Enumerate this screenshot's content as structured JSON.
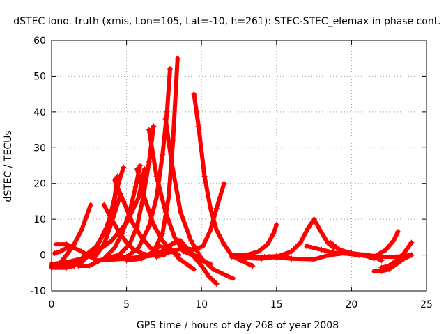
{
  "chart_data": {
    "type": "scatter",
    "title": "dSTEC Iono. truth (xmis, Lon=105, Lat=-10, h=261): STEC-STEC_elemax in phase cont.",
    "xlabel": "GPS time / hours of day 268 of year 2008",
    "ylabel": "dSTEC  / TECUs",
    "xlim": [
      0,
      25
    ],
    "ylim": [
      -10,
      60
    ],
    "xticks": [
      0,
      5,
      10,
      15,
      20,
      25
    ],
    "yticks": [
      -10,
      0,
      10,
      20,
      30,
      40,
      50,
      60
    ],
    "grid": true,
    "legend": "none",
    "marker": "plus",
    "color": "#ff0000",
    "series": [
      {
        "x": [
          0.0,
          0.5,
          1.0,
          1.5,
          2.0,
          2.3,
          2.6
        ],
        "y": [
          -3.0,
          -2.5,
          0.0,
          3.0,
          7.0,
          10.5,
          14.0
        ]
      },
      {
        "x": [
          0.0,
          1.0,
          2.0,
          3.0,
          3.6,
          4.0,
          4.3,
          4.6,
          4.8
        ],
        "y": [
          -2.5,
          -2.0,
          -1.0,
          2.5,
          7.0,
          12.0,
          17.5,
          22.0,
          24.5
        ]
      },
      {
        "x": [
          0.3,
          1.0,
          2.0,
          3.0,
          3.8,
          4.2,
          4.4
        ],
        "y": [
          -3.5,
          -3.0,
          -2.0,
          2.0,
          9.0,
          16.0,
          22.0
        ]
      },
      {
        "x": [
          1.8,
          2.5,
          3.5,
          4.2,
          4.7,
          5.2,
          5.6,
          5.9
        ],
        "y": [
          -3.0,
          -3.0,
          -1.0,
          2.0,
          6.0,
          12.0,
          19.0,
          25.0
        ]
      },
      {
        "x": [
          3.5,
          4.5,
          5.2,
          5.7,
          6.1,
          6.5,
          6.8
        ],
        "y": [
          -1.0,
          0.0,
          3.0,
          8.0,
          16.0,
          26.0,
          36.0
        ]
      },
      {
        "x": [
          4.2,
          5.0,
          5.8,
          6.5,
          7.0,
          7.4,
          7.7,
          7.9
        ],
        "y": [
          -1.0,
          -0.5,
          2.0,
          8.0,
          16.0,
          28.0,
          40.0,
          52.0
        ]
      },
      {
        "x": [
          5.0,
          6.0,
          6.8,
          7.4,
          7.8,
          8.1,
          8.4
        ],
        "y": [
          -1.5,
          -1.0,
          1.0,
          6.0,
          16.0,
          32.0,
          55.0
        ]
      },
      {
        "x": [
          0.3,
          1.0,
          2.0,
          2.8,
          3.5,
          4.0,
          4.6
        ],
        "y": [
          3.0,
          3.0,
          1.0,
          -1.0,
          3.0,
          9.0,
          17.0
        ]
      },
      {
        "x": [
          0.4,
          1.5,
          3.0,
          4.0,
          5.0,
          5.8,
          6.2
        ],
        "y": [
          -2.5,
          -2.0,
          1.0,
          4.0,
          9.0,
          16.0,
          24.0
        ]
      },
      {
        "x": [
          3.5,
          4.0,
          4.5,
          5.0,
          5.5,
          6.0,
          6.5,
          7.2
        ],
        "y": [
          14.0,
          10.0,
          6.5,
          3.5,
          1.5,
          0.5,
          0.0,
          0.0
        ]
      },
      {
        "x": [
          4.2,
          4.8,
          5.4,
          6.0,
          6.6,
          7.2
        ],
        "y": [
          21.0,
          15.0,
          9.0,
          5.0,
          2.0,
          0.5
        ]
      },
      {
        "x": [
          5.7,
          6.2,
          6.8,
          7.4,
          8.0,
          8.5
        ],
        "y": [
          24.0,
          16.0,
          8.5,
          4.0,
          1.0,
          0.0
        ]
      },
      {
        "x": [
          6.5,
          7.0,
          7.6,
          8.2,
          8.8,
          9.4
        ],
        "y": [
          35.0,
          22.0,
          12.0,
          5.0,
          1.0,
          0.0
        ]
      },
      {
        "x": [
          7.6,
          8.0,
          8.6,
          9.3,
          10.0,
          10.8,
          11.8,
          12.1
        ],
        "y": [
          38.0,
          26.0,
          12.0,
          4.0,
          -1.0,
          -4.0,
          -6.0,
          -6.5
        ]
      },
      {
        "x": [
          9.5,
          9.8,
          10.2,
          10.6,
          11.0,
          11.5,
          12.0,
          12.6,
          13.4
        ],
        "y": [
          45.0,
          36.0,
          22.0,
          13.0,
          7.0,
          3.0,
          0.0,
          -1.5,
          -3.0
        ]
      },
      {
        "x": [
          7.0,
          8.0,
          8.8,
          9.5,
          10.1,
          10.6,
          11.0,
          11.5
        ],
        "y": [
          -0.5,
          1.0,
          2.0,
          1.5,
          2.5,
          7.0,
          13.0,
          20.0
        ]
      },
      {
        "x": [
          3.0,
          5.0,
          7.0,
          8.0,
          8.6,
          9.2,
          10.0,
          10.5,
          11.0
        ],
        "y": [
          -1.5,
          -1.0,
          0.0,
          3.0,
          4.0,
          1.0,
          -3.0,
          -6.0,
          -8.0
        ]
      },
      {
        "x": [
          5.5,
          6.5,
          7.2,
          8.0,
          8.5,
          9.5
        ],
        "y": [
          -1.0,
          0.0,
          2.5,
          1.5,
          -1.0,
          -4.0
        ]
      },
      {
        "x": [
          7.5,
          8.0,
          8.5,
          9.0,
          9.5,
          10.0,
          10.6
        ],
        "y": [
          0.0,
          3.0,
          4.0,
          2.0,
          0.0,
          -1.5,
          -2.5
        ]
      },
      {
        "x": [
          12.0,
          13.0,
          13.8,
          14.4,
          14.8,
          15.0
        ],
        "y": [
          0.0,
          0.0,
          1.0,
          3.0,
          6.0,
          8.5
        ]
      },
      {
        "x": [
          12.0,
          13.0,
          14.0,
          15.0,
          16.0,
          16.6,
          17.1,
          17.5,
          17.9,
          18.4,
          18.8
        ],
        "y": [
          -0.5,
          -0.8,
          -1.0,
          -0.5,
          1.0,
          3.5,
          7.5,
          10.0,
          7.0,
          3.5,
          2.0
        ]
      },
      {
        "x": [
          14.5,
          16.0,
          17.5,
          18.5,
          19.5,
          20.5,
          21.5,
          22.0
        ],
        "y": [
          -0.5,
          -1.0,
          -1.2,
          0.0,
          0.5,
          0.0,
          -0.5,
          -1.5
        ]
      },
      {
        "x": [
          12.8,
          13.5,
          14.2,
          15.0,
          15.6,
          16.0
        ],
        "y": [
          -0.8,
          -0.6,
          -0.5,
          -0.3,
          -0.5,
          -1.0
        ]
      },
      {
        "x": [
          17.0,
          18.0,
          19.0,
          20.0,
          20.8,
          21.5
        ],
        "y": [
          2.5,
          1.5,
          0.5,
          0.5,
          0.0,
          -1.0
        ]
      },
      {
        "x": [
          18.6,
          19.2,
          20.0,
          21.0,
          22.0,
          23.0,
          24.0
        ],
        "y": [
          3.5,
          1.5,
          0.5,
          0.0,
          -0.5,
          -0.5,
          0.0
        ]
      },
      {
        "x": [
          19.5,
          20.5,
          21.5,
          22.3,
          22.8,
          23.1
        ],
        "y": [
          0.5,
          0.0,
          -0.5,
          1.5,
          4.0,
          6.5
        ]
      },
      {
        "x": [
          21.5,
          22.0,
          22.5,
          23.0,
          23.5,
          24.0
        ],
        "y": [
          -4.5,
          -4.5,
          -4.0,
          -2.5,
          -1.0,
          0.0
        ]
      },
      {
        "x": [
          22.0,
          22.5,
          23.0,
          23.5,
          24.0
        ],
        "y": [
          -3.5,
          -3.0,
          -1.5,
          0.5,
          3.5
        ]
      },
      {
        "x": [
          0.2,
          0.6,
          1.0,
          1.2
        ],
        "y": [
          0.5,
          1.0,
          2.0,
          2.5
        ]
      },
      {
        "x": [
          0.0,
          0.5,
          1.0,
          1.5
        ],
        "y": [
          -3.5,
          -3.5,
          -3.5,
          -3.0
        ]
      }
    ]
  }
}
